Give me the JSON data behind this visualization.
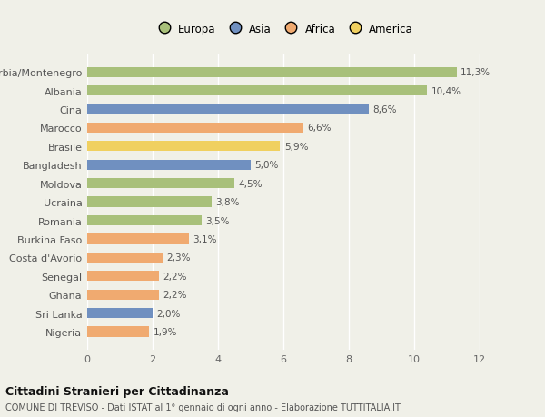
{
  "categories": [
    "Nigeria",
    "Sri Lanka",
    "Ghana",
    "Senegal",
    "Costa d'Avorio",
    "Burkina Faso",
    "Romania",
    "Ucraina",
    "Moldova",
    "Bangladesh",
    "Brasile",
    "Marocco",
    "Cina",
    "Albania",
    "Serbia/Montenegro"
  ],
  "values": [
    1.9,
    2.0,
    2.2,
    2.2,
    2.3,
    3.1,
    3.5,
    3.8,
    4.5,
    5.0,
    5.9,
    6.6,
    8.6,
    10.4,
    11.3
  ],
  "continents": [
    "Africa",
    "Asia",
    "Africa",
    "Africa",
    "Africa",
    "Africa",
    "Europa",
    "Europa",
    "Europa",
    "Asia",
    "America",
    "Africa",
    "Asia",
    "Europa",
    "Europa"
  ],
  "colors": {
    "Europa": "#a8c07a",
    "Asia": "#7090c0",
    "Africa": "#f0aa70",
    "America": "#f0d060"
  },
  "labels": [
    "1,9%",
    "2,0%",
    "2,2%",
    "2,2%",
    "2,3%",
    "3,1%",
    "3,5%",
    "3,8%",
    "4,5%",
    "5,0%",
    "5,9%",
    "6,6%",
    "8,6%",
    "10,4%",
    "11,3%"
  ],
  "xlim": [
    0,
    12
  ],
  "xticks": [
    0,
    2,
    4,
    6,
    8,
    10,
    12
  ],
  "background_color": "#f0f0e8",
  "title_main": "Cittadini Stranieri per Cittadinanza",
  "title_sub": "COMUNE DI TREVISO - Dati ISTAT al 1° gennaio di ogni anno - Elaborazione TUTTITALIA.IT",
  "legend_order": [
    "Europa",
    "Asia",
    "Africa",
    "America"
  ]
}
